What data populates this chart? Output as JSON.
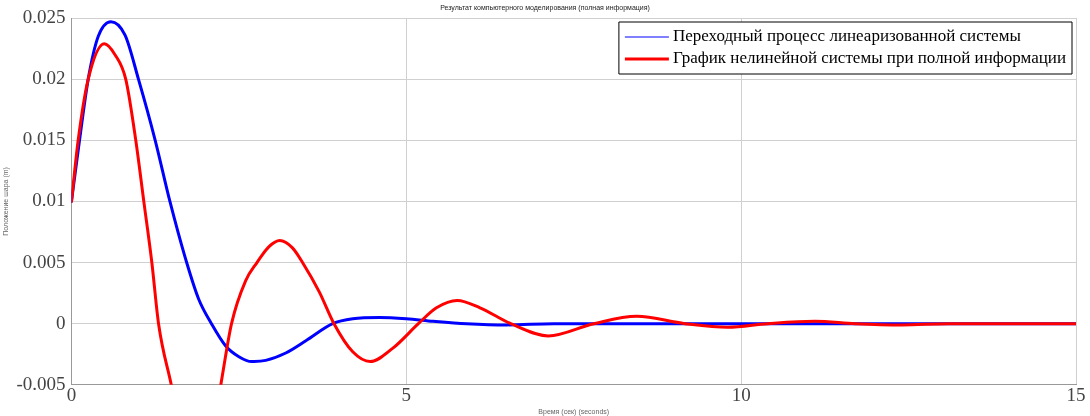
{
  "chart_data": {
    "type": "line",
    "title": "Результат компьютерного моделирования (полная информация)",
    "xlabel": "Время (сек) (seconds)",
    "ylabel": "Положение шара (m)",
    "xlim": [
      0,
      15
    ],
    "xticks": [
      0,
      5,
      10,
      15
    ],
    "ylim": [
      -0.005,
      0.025
    ],
    "yticks": [
      -0.005,
      0,
      0.005,
      0.01,
      0.015,
      0.02,
      0.025
    ],
    "grid": true,
    "legend": "top right",
    "marker": "none",
    "line_style": "solid",
    "series": [
      {
        "name": "Переходный процесс линеаризованной системы",
        "color": "#0000ff",
        "x": [
          0,
          0.12,
          0.25,
          0.4,
          0.59,
          0.8,
          1.0,
          1.25,
          1.47,
          1.72,
          1.9,
          2.09,
          2.3,
          2.5,
          2.69,
          2.9,
          3.2,
          3.5,
          3.9,
          4.2,
          4.6,
          5.0,
          5.4,
          5.9,
          6.5,
          7.2,
          8,
          9,
          10,
          11,
          12,
          13,
          14,
          15
        ],
        "values": [
          0.01,
          0.015,
          0.02,
          0.0235,
          0.0247,
          0.0236,
          0.02,
          0.015,
          0.01,
          0.005,
          0.002,
          0,
          -0.0018,
          -0.0027,
          -0.0031,
          -0.003,
          -0.0024,
          -0.0014,
          0,
          0.0004,
          0.0005,
          0.0004,
          0.0002,
          0,
          -0.0001,
          0,
          0,
          0,
          0,
          0,
          0,
          0,
          0,
          0
        ]
      },
      {
        "name": "График нелинейной системы при полной информации",
        "color": "#ff0000",
        "x": [
          0,
          0.1,
          0.25,
          0.49,
          0.65,
          0.81,
          0.96,
          1.08,
          1.2,
          1.3,
          1.49,
          1.8,
          2.23,
          2.39,
          2.6,
          2.77,
          2.95,
          3.11,
          3.3,
          3.45,
          3.7,
          3.92,
          4.2,
          4.46,
          4.8,
          5.18,
          5.45,
          5.76,
          6.1,
          6.56,
          7.12,
          7.8,
          8.44,
          9.16,
          9.8,
          10.4,
          11.1,
          11.7,
          12.4,
          13.1,
          13.8,
          14.4,
          15
        ],
        "values": [
          0.01,
          0.015,
          0.02,
          0.0229,
          0.022,
          0.02,
          0.015,
          0.01,
          0.005,
          0,
          -0.005,
          null,
          -0.005,
          0,
          0.0035,
          0.005,
          0.0063,
          0.0068,
          0.0062,
          0.005,
          0.0026,
          0,
          -0.0023,
          -0.0031,
          -0.002,
          0,
          0.0013,
          0.0019,
          0.0013,
          0,
          -0.001,
          0,
          0.0006,
          0,
          -0.0003,
          0,
          0.0002,
          0,
          -0.0001,
          0,
          0,
          0,
          0
        ]
      }
    ]
  }
}
